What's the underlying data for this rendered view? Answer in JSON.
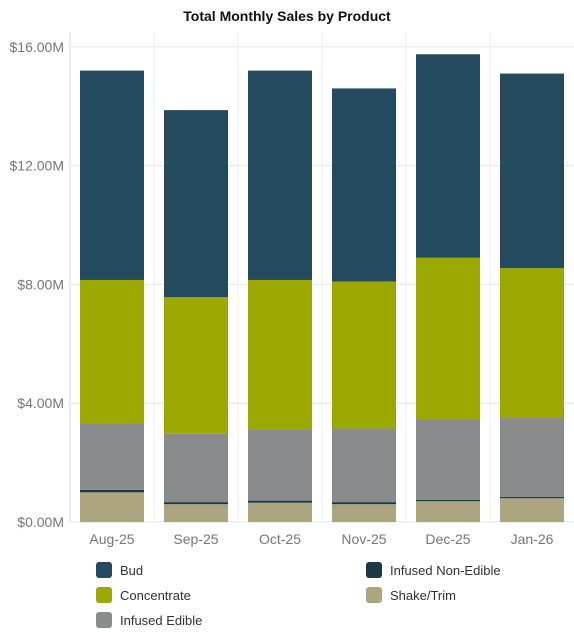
{
  "chart_data": {
    "type": "bar",
    "stacked": true,
    "title": "Total Monthly Sales by Product",
    "xlabel": "",
    "ylabel": "",
    "categories": [
      "Aug-25",
      "Sep-25",
      "Oct-25",
      "Nov-25",
      "Dec-25",
      "Jan-26"
    ],
    "yticks": [
      {
        "value": 0,
        "label": "$0.00M"
      },
      {
        "value": 4,
        "label": "$4.00M"
      },
      {
        "value": 8,
        "label": "$8.00M"
      },
      {
        "value": 12,
        "label": "$12.00M"
      },
      {
        "value": 16,
        "label": "$16.00M"
      }
    ],
    "ylim": [
      0,
      16.5
    ],
    "grid": true,
    "legend_position": "bottom",
    "series": [
      {
        "name": "Shake/Trim",
        "color": "#ADA57F",
        "values": [
          1.0,
          0.6,
          0.65,
          0.6,
          0.7,
          0.8
        ]
      },
      {
        "name": "Infused Non-Edible",
        "color": "#1B3A46",
        "values": [
          0.08,
          0.07,
          0.07,
          0.07,
          0.05,
          0.05
        ]
      },
      {
        "name": "Infused Edible",
        "color": "#8A8B8C",
        "values": [
          2.25,
          2.3,
          2.4,
          2.48,
          2.7,
          2.65
        ]
      },
      {
        "name": "Concentrate",
        "color": "#9BA802",
        "values": [
          4.82,
          4.6,
          5.03,
          4.95,
          5.45,
          5.05
        ]
      },
      {
        "name": "Bud",
        "color": "#234A5E",
        "values": [
          7.05,
          6.3,
          7.05,
          6.5,
          6.85,
          6.55
        ]
      }
    ]
  },
  "legend": [
    {
      "label": "Bud",
      "color": "#234A5E"
    },
    {
      "label": "Infused Non-Edible",
      "color": "#1B3A46"
    },
    {
      "label": "Concentrate",
      "color": "#9BA802"
    },
    {
      "label": "Shake/Trim",
      "color": "#ADA57F"
    },
    {
      "label": "Infused Edible",
      "color": "#8A8B8C"
    }
  ]
}
